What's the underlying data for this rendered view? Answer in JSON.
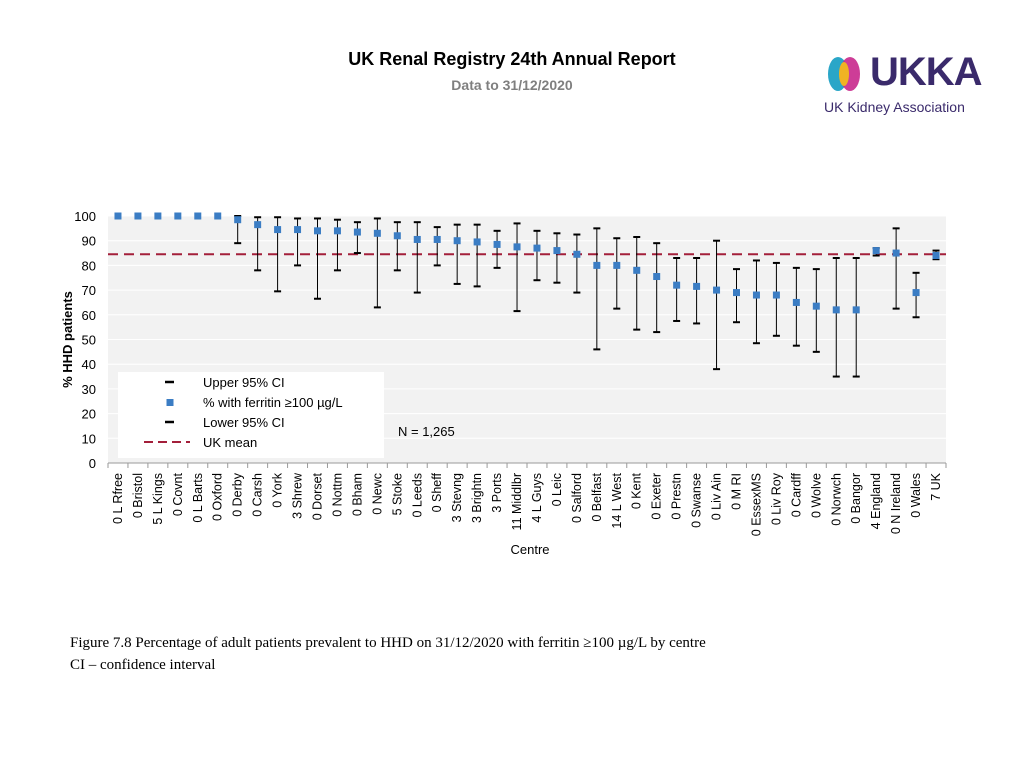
{
  "header": {
    "title": "UK Renal Registry 24th Annual Report",
    "subtitle": "Data to 31/12/2020"
  },
  "logo": {
    "brand": "UKKA",
    "name": "UK Kidney Association"
  },
  "caption": {
    "line1": "Figure 7.8 Percentage of adult patients prevalent to HHD on 31/12/2020 with ferritin ≥100 µg/L by centre",
    "line2": "CI – confidence interval"
  },
  "colors": {
    "marker": "#3b7dc4",
    "mean_line": "#a31f3a",
    "plot_bg": "#f2f2f2",
    "grid": "#ffffff",
    "whisker": "#000000"
  },
  "chart_data": {
    "type": "scatter",
    "title": "",
    "xlabel": "Centre",
    "ylabel": "% HHD patients",
    "ylim": [
      0,
      100
    ],
    "yticks": [
      0,
      10,
      20,
      30,
      40,
      50,
      60,
      70,
      80,
      90,
      100
    ],
    "uk_mean": 84.5,
    "annotation": "N = 1,265",
    "legend": {
      "upper": "Upper 95% CI",
      "marker": "% with ferritin ≥100 µg/L",
      "lower": "Lower 95% CI",
      "mean": "UK mean"
    },
    "categories": [
      "0 L Rfree",
      "0 Bristol",
      "5 L Kings",
      "0 Covnt",
      "0 L Barts",
      "0 Oxford",
      "0 Derby",
      "0 Carsh",
      "0 York",
      "3 Shrew",
      "0 Dorset",
      "0 Nottm",
      "0 Bham",
      "0 Newc",
      "5 Stoke",
      "0 Leeds",
      "0 Sheff",
      "3 Stevng",
      "3 Brightn",
      "3 Ports",
      "11 Middlbr",
      "4 L Guys",
      "0 Leic",
      "0 Salford",
      "0 Belfast",
      "14 L West",
      "0 Kent",
      "0 Exeter",
      "0 Prestn",
      "0 Swanse",
      "0 Liv Ain",
      "0 M RI",
      "0 EssexMS",
      "0 Liv Roy",
      "0 Cardff",
      "0 Wolve",
      "0 Norwch",
      "0 Bangor",
      "4 England",
      "0 N Ireland",
      "0 Wales",
      "7 UK"
    ],
    "values": [
      100,
      100,
      100,
      100,
      100,
      100,
      98.5,
      96.5,
      94.5,
      94.5,
      94,
      94,
      93.5,
      93,
      92,
      90.5,
      90.5,
      90,
      89.5,
      88.5,
      87.5,
      87,
      86,
      84.5,
      80,
      80,
      78,
      75.5,
      72,
      71.5,
      70,
      69,
      68,
      68,
      65,
      63.5,
      62,
      62,
      86,
      85,
      69,
      84
    ],
    "upper": [
      null,
      null,
      null,
      null,
      null,
      null,
      100,
      99.5,
      99.5,
      99,
      99,
      98.5,
      97.5,
      99,
      97.5,
      97.5,
      95.5,
      96.5,
      96.5,
      94,
      97,
      94,
      93,
      92.5,
      95,
      91,
      91.5,
      89,
      83,
      83,
      90,
      78.5,
      82,
      81,
      79,
      78.5,
      83,
      83,
      87,
      95,
      77,
      86
    ],
    "lower": [
      null,
      null,
      null,
      null,
      null,
      null,
      89,
      78,
      69.5,
      80,
      66.5,
      78,
      85,
      63,
      78,
      69,
      80,
      72.5,
      71.5,
      79,
      61.5,
      74,
      73,
      69,
      46,
      62.5,
      54,
      53,
      57.5,
      56.5,
      38,
      57,
      48.5,
      51.5,
      47.5,
      45,
      35,
      35,
      84,
      62.5,
      59,
      82.5
    ]
  }
}
